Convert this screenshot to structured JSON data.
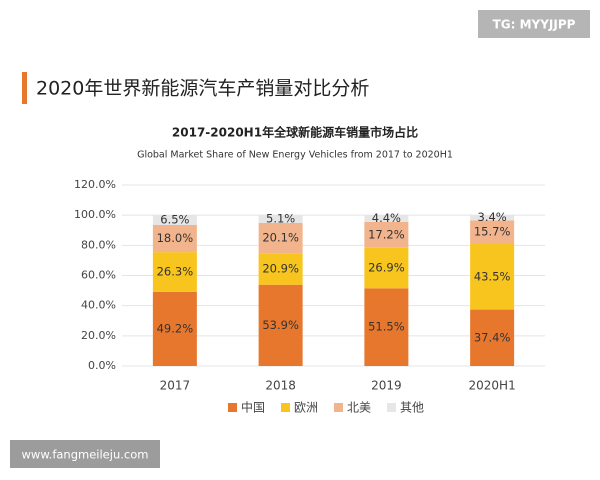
{
  "badge": "TG: MYYJJPP",
  "heading": "2020年世界新能源汽车产销量对比分析",
  "watermark": "www.fangmeileju.com",
  "chart_data": {
    "type": "bar",
    "stacked": true,
    "title": "2017-2020H1年全球新能源车销量市场占比",
    "subtitle": "Global Market Share of New Energy Vehicles from 2017  to 2020H1",
    "categories": [
      "2017",
      "2018",
      "2019",
      "2020H1"
    ],
    "series": [
      {
        "name": "中国",
        "color": "#e8772e",
        "values": [
          49.2,
          53.9,
          51.5,
          37.4
        ],
        "value_labels": [
          "49.2%",
          "53.9%",
          "51.5%",
          "37.4%"
        ]
      },
      {
        "name": "欧洲",
        "color": "#f7c51e",
        "values": [
          26.3,
          20.9,
          26.9,
          43.5
        ],
        "value_labels": [
          "26.3%",
          "20.9%",
          "26.9%",
          "43.5%"
        ]
      },
      {
        "name": "北美",
        "color": "#f2b48c",
        "values": [
          18.0,
          20.1,
          17.2,
          15.7
        ],
        "value_labels": [
          "18.0%",
          "20.1%",
          "17.2%",
          "15.7%"
        ]
      },
      {
        "name": "其他",
        "color": "#e6e6e6",
        "values": [
          6.5,
          5.1,
          4.4,
          3.4
        ],
        "value_labels": [
          "6.5%",
          "5.1%",
          "4.4%",
          "3.4%"
        ]
      }
    ],
    "ylim": [
      0,
      120
    ],
    "yticks": [
      {
        "value": 0,
        "label": "0.0%"
      },
      {
        "value": 20,
        "label": "20.0%"
      },
      {
        "value": 40,
        "label": "40.0%"
      },
      {
        "value": 60,
        "label": "60.0%"
      },
      {
        "value": 80,
        "label": "80.0%"
      },
      {
        "value": 100,
        "label": "100.0%"
      },
      {
        "value": 120,
        "label": "120.0%"
      }
    ],
    "grid": true,
    "legend": "bottom"
  }
}
